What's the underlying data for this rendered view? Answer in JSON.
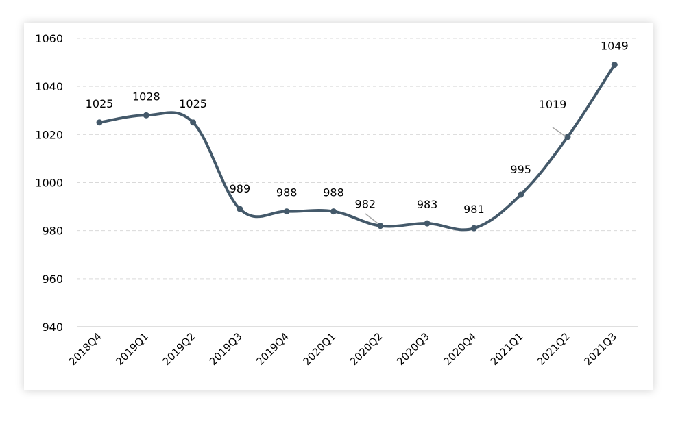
{
  "chart_data": {
    "type": "line",
    "title": "",
    "xlabel": "",
    "ylabel": "",
    "categories": [
      "2018Q4",
      "2019Q1",
      "2019Q2",
      "2019Q3",
      "2019Q4",
      "2020Q1",
      "2020Q2",
      "2020Q3",
      "2020Q4",
      "2021Q1",
      "2021Q2",
      "2021Q3"
    ],
    "series": [
      {
        "values": [
          1025,
          1028,
          1025,
          989,
          988,
          988,
          982,
          983,
          981,
          995,
          1019,
          1049
        ]
      }
    ],
    "ylim": [
      940,
      1060
    ],
    "yticks": [
      "940",
      "960",
      "980",
      "1000",
      "1020",
      "1040",
      "1060"
    ],
    "data_labels": [
      "1025",
      "1028",
      "1025",
      "989",
      "988",
      "988",
      "982",
      "983",
      "981",
      "995",
      "1019",
      "1049"
    ],
    "grid": "horizontal dashed",
    "smooth": true,
    "line_color": "#44596a",
    "grid_color": "#d9d9d9",
    "axis_color": "#bfbfbf"
  }
}
